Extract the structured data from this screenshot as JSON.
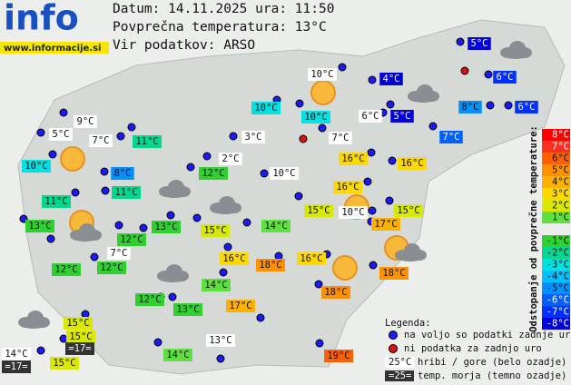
{
  "header": {
    "logo": "info",
    "site": "www.informacije.si",
    "date": "Datum: 14.11.2025 ura: 11:50",
    "average": "Povprečna temperatura: 13°C",
    "source": "Vir podatkov: ARSO"
  },
  "stations": [
    {
      "label": "10°C",
      "color": "#ffffff"
    },
    {
      "label": "4°C",
      "color": "#0000cc"
    },
    {
      "label": "5°C",
      "color": "#0000dd"
    },
    {
      "label": "6°C",
      "color": "#0030ff"
    },
    {
      "label": "6°C",
      "color": "#0030ff"
    },
    {
      "label": "8°C",
      "color": "#0090ff"
    },
    {
      "label": "5°C",
      "color": "#0000dd"
    },
    {
      "label": "6°C",
      "color": "#ffffff"
    },
    {
      "label": "7°C",
      "color": "#0060ff"
    },
    {
      "label": "10°C",
      "color": "#00e0e0"
    },
    {
      "label": "10°C",
      "color": "#00e0e0"
    },
    {
      "label": "9°C",
      "color": "#ffffff"
    },
    {
      "label": "5°C",
      "color": "#ffffff"
    },
    {
      "label": "7°C",
      "color": "#ffffff"
    },
    {
      "label": "11°C",
      "color": "#00d890"
    },
    {
      "label": "3°C",
      "color": "#ffffff"
    },
    {
      "label": "7°C",
      "color": "#ffffff"
    },
    {
      "label": "10°C",
      "color": "#00e0e0"
    },
    {
      "label": "8°C",
      "color": "#0090ff"
    },
    {
      "label": "2°C",
      "color": "#ffffff"
    },
    {
      "label": "16°C",
      "color": "#ffd800"
    },
    {
      "label": "16°C",
      "color": "#ffd800"
    },
    {
      "label": "12°C",
      "color": "#30d030"
    },
    {
      "label": "10°C",
      "color": "#ffffff"
    },
    {
      "label": "11°C",
      "color": "#00d890"
    },
    {
      "label": "16°C",
      "color": "#ffd800"
    },
    {
      "label": "11°C",
      "color": "#00d890"
    },
    {
      "label": "15°C",
      "color": "#d8e800"
    },
    {
      "label": "10°C",
      "color": "#ffffff"
    },
    {
      "label": "15°C",
      "color": "#d8e800"
    },
    {
      "label": "17°C",
      "color": "#ffb000"
    },
    {
      "label": "13°C",
      "color": "#30d030"
    },
    {
      "label": "13°C",
      "color": "#30d030"
    },
    {
      "label": "15°C",
      "color": "#d8e800"
    },
    {
      "label": "14°C",
      "color": "#60e040"
    },
    {
      "label": "7°C",
      "color": "#ffffff"
    },
    {
      "label": "12°C",
      "color": "#30d030"
    },
    {
      "label": "12°C",
      "color": "#30d030"
    },
    {
      "label": "12°C",
      "color": "#30d030"
    },
    {
      "label": "16°C",
      "color": "#ffd800"
    },
    {
      "label": "18°C",
      "color": "#ff9000"
    },
    {
      "label": "16°C",
      "color": "#ffd800"
    },
    {
      "label": "18°C",
      "color": "#ff9000"
    },
    {
      "label": "14°C",
      "color": "#60e040"
    },
    {
      "label": "18°C",
      "color": "#ff9000"
    },
    {
      "label": "12°C",
      "color": "#30d030"
    },
    {
      "label": "13°C",
      "color": "#30d030"
    },
    {
      "label": "17°C",
      "color": "#ffb000"
    },
    {
      "label": "15°C",
      "color": "#d8e800"
    },
    {
      "label": "15°C",
      "color": "#d8e800"
    },
    {
      "label": "14°C",
      "color": "#60e040"
    },
    {
      "label": "13°C",
      "color": "#ffffff"
    },
    {
      "label": "19°C",
      "color": "#ff6000"
    },
    {
      "label": "15°C",
      "color": "#d8e800"
    },
    {
      "label": "14°C",
      "color": "#ffffff"
    }
  ],
  "sea": [
    {
      "label": "=17=",
      "color": "#333333"
    },
    {
      "label": "=17=",
      "color": "#333333"
    }
  ],
  "scale": {
    "title": "Odstopanje od povprečne temperature:",
    "items": [
      {
        "label": "8°C",
        "color": "#ff0000"
      },
      {
        "label": "7°C",
        "color": "#ff3020"
      },
      {
        "label": "6°C",
        "color": "#ff6000"
      },
      {
        "label": "5°C",
        "color": "#ff9000"
      },
      {
        "label": "4°C",
        "color": "#ffb000"
      },
      {
        "label": "3°C",
        "color": "#ffd800"
      },
      {
        "label": "2°C",
        "color": "#d8e800"
      },
      {
        "label": "1°C",
        "color": "#60e040"
      },
      {
        "label": "-1°C",
        "color": "#30d030"
      },
      {
        "label": "-2°C",
        "color": "#00d890"
      },
      {
        "label": "-3°C",
        "color": "#00e0e0"
      },
      {
        "label": "-4°C",
        "color": "#00c0ff"
      },
      {
        "label": "-5°C",
        "color": "#0090ff"
      },
      {
        "label": "-6°C",
        "color": "#0060ff"
      },
      {
        "label": "-7°C",
        "color": "#0030ff"
      },
      {
        "label": "-8°C",
        "color": "#0000e0"
      }
    ]
  },
  "legend": {
    "title": "Legenda:",
    "available": "na voljo so podatki zadnje ure",
    "missing": "ni podatka za zadnjo uro",
    "mountain_sample": "25°C",
    "mountain_text": "hribi / gore (belo ozadje)",
    "sea_sample": "=25=",
    "sea_text": "temp. morja (temno ozadje)"
  }
}
